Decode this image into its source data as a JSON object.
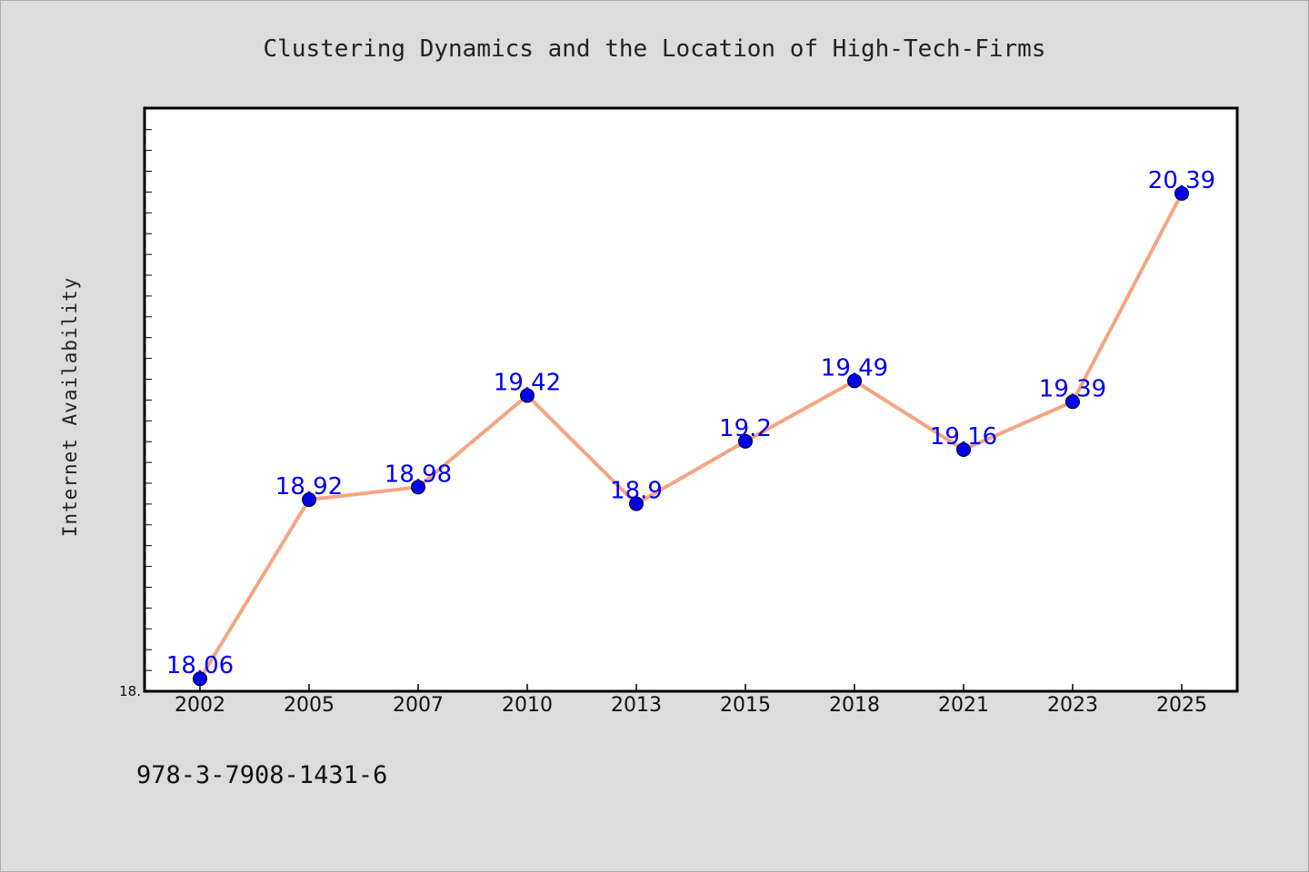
{
  "colors": {
    "background": "#dcdcdc",
    "plot_background": "#ffffff",
    "line": "#f4a582",
    "marker": "#0000ee",
    "data_label": "#0000ee"
  },
  "footnote": "978-3-7908-1431-6",
  "chart_data": {
    "type": "line",
    "title": "Clustering Dynamics and the Location of High-Tech-Firms",
    "xlabel": "",
    "ylabel": "Internet Availability",
    "categories": [
      "2002",
      "2005",
      "2007",
      "2010",
      "2013",
      "2015",
      "2018",
      "2021",
      "2023",
      "2025"
    ],
    "series": [
      {
        "values": [
          18.06,
          18.92,
          18.98,
          19.42,
          18.9,
          19.2,
          19.49,
          19.16,
          19.39,
          20.39
        ],
        "labels": [
          "18.06",
          "18.92",
          "18.98",
          "19.42",
          "18.9",
          "19.2",
          "19.49",
          "19.16",
          "19.39",
          "20.39"
        ]
      }
    ],
    "y_tick_label": "18.",
    "ylim": [
      18.0,
      20.8
    ],
    "grid": false,
    "legend": "none"
  }
}
